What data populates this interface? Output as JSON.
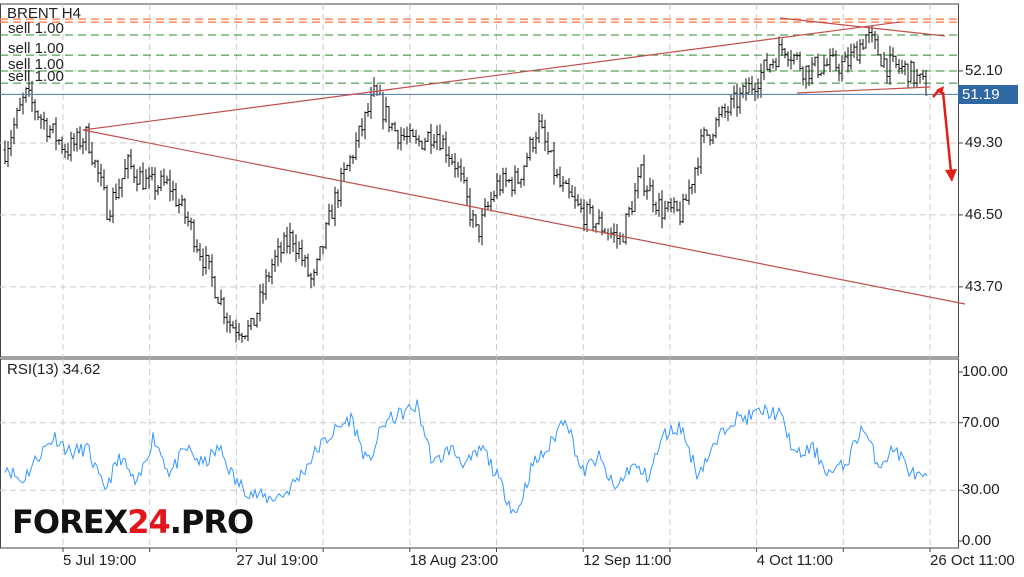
{
  "chart_data": {
    "type": "ohlc-bar",
    "title": "BRENT H4",
    "current_price": "51.19",
    "current_price_value": 51.19,
    "price_ticks": [
      "52.10",
      "49.30",
      "46.50",
      "43.70"
    ],
    "price_tick_values": [
      52.1,
      49.3,
      46.5,
      43.7
    ],
    "ylim": [
      41.7,
      55.2
    ],
    "x_tick_labels": [
      "5 Jul 19:00",
      "27 Jul 19:00",
      "18 Aug 23:00",
      "12 Sep 11:00",
      "4 Oct 11:00",
      "26 Oct 11:00"
    ],
    "close_path": [
      49.03,
      51.17,
      50.0,
      49.03,
      49.6,
      46.69,
      48.44,
      47.66,
      47.66,
      46.11,
      44.16,
      42.22,
      42.02,
      44.55,
      45.72,
      43.77,
      46.89,
      49.03,
      51.17,
      49.8,
      49.22,
      49.8,
      48.44,
      45.72,
      47.66,
      47.86,
      50.0,
      47.66,
      46.69,
      46.11,
      45.52,
      48.05,
      46.69,
      46.5,
      49.42,
      50.39,
      51.17,
      52.14,
      53.11,
      52.14,
      52.33,
      52.33,
      53.5,
      52.33,
      52.14,
      51.36
    ],
    "orders": [
      {
        "label": "sell 1.00",
        "price": 53.5
      },
      {
        "label": "sell 1.00",
        "price": 52.72
      },
      {
        "label": "sell 1.00",
        "price": 52.1
      },
      {
        "label": "sell 1.00",
        "price": 51.63
      }
    ],
    "stop_levels": [
      54.12,
      54.0
    ],
    "colors": {
      "bars": "#111111",
      "orders": "#2e8b2e",
      "stops": "#ff8a5c",
      "trendlines": "#c0504d",
      "arrow": "#e0201a",
      "current": "#2f68a3",
      "rsi": "#3399ff"
    },
    "rsi": {
      "label": "RSI(13) 34.62",
      "period": 13,
      "value": 34.62,
      "ticks": [
        "100.00",
        "70.00",
        "30.00",
        "0.00"
      ],
      "tick_values": [
        100,
        70,
        30,
        0
      ],
      "path": [
        45,
        35,
        50,
        62,
        52,
        55,
        30,
        50,
        32,
        62,
        40,
        55,
        45,
        55,
        35,
        28,
        25,
        28,
        40,
        55,
        65,
        73,
        45,
        70,
        75,
        80,
        45,
        55,
        45,
        55,
        35,
        15,
        45,
        55,
        75,
        40,
        50,
        30,
        45,
        38,
        63,
        68,
        40,
        55,
        72,
        73,
        77,
        75,
        50,
        55,
        40,
        45,
        68,
        45,
        55,
        40,
        35
      ]
    }
  },
  "watermark": {
    "part1": "FOREX",
    "part2": "24",
    "part3": ".PRO"
  }
}
